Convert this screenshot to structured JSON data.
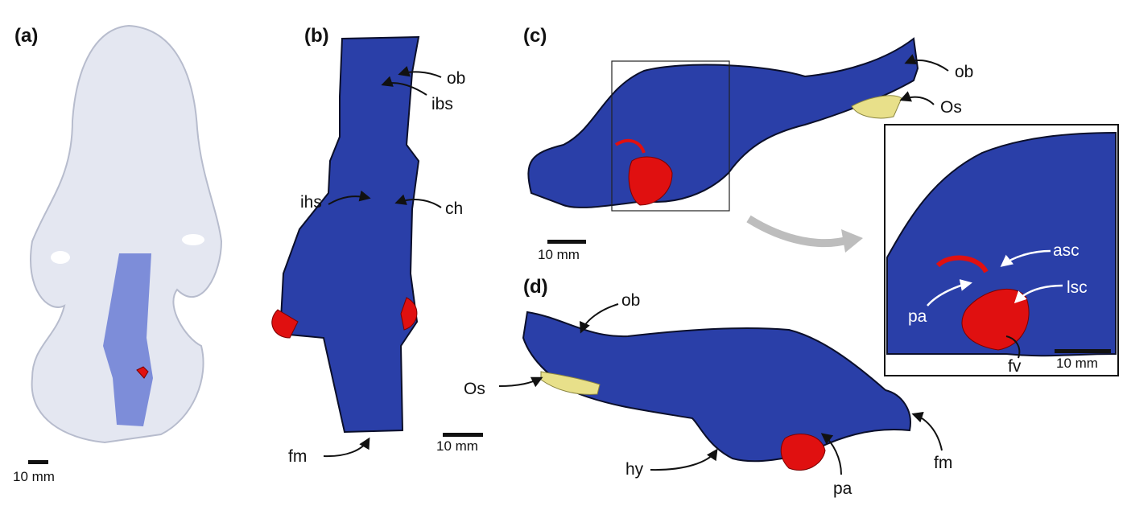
{
  "panels": [
    {
      "label": "(a)",
      "scale_bar": "10 mm"
    },
    {
      "label": "(b)",
      "annotations": [
        "ob",
        "ibs",
        "ihs",
        "ch",
        "fm"
      ],
      "scale_bar": "10 mm"
    },
    {
      "label": "(c)",
      "annotations": [
        "ob",
        "Os"
      ],
      "scale_bar": "10 mm"
    },
    {
      "label": "(d)",
      "annotations": [
        "ob",
        "Os",
        "hy",
        "pa",
        "fm"
      ]
    }
  ],
  "inset": {
    "annotations": [
      "asc",
      "pa",
      "lsc",
      "fv"
    ],
    "scale_bar": "10 mm"
  }
}
